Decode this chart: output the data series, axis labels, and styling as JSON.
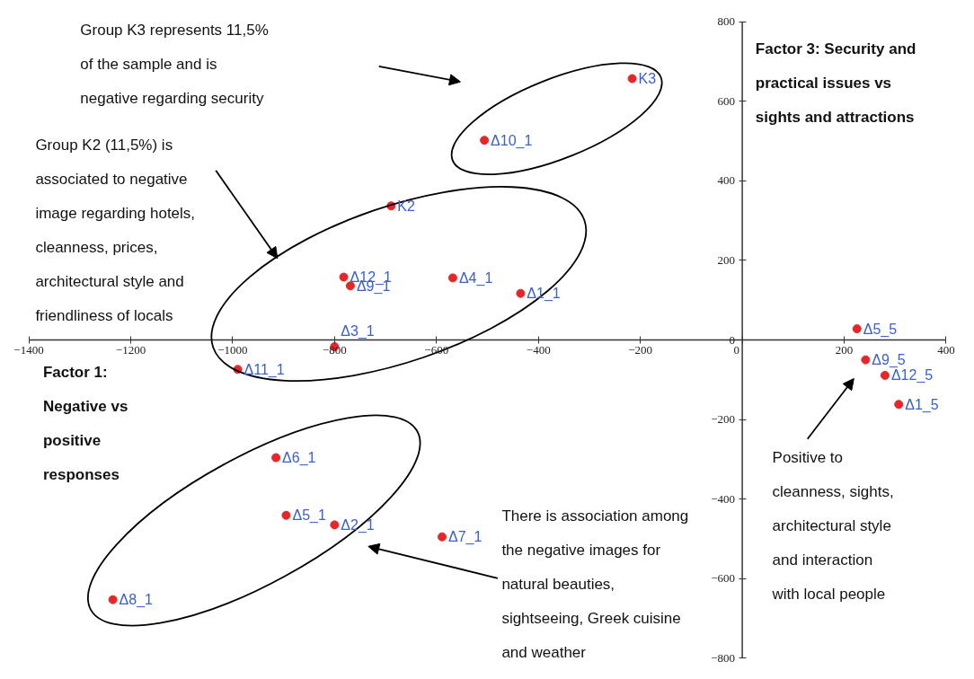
{
  "chart_data": {
    "type": "scatter",
    "xlabel": "Factor 1:\nNegative vs\npositive\nresponses",
    "ylabel": "Factor 3: Security and\npractical issues vs\nsights and attractions",
    "xlim": [
      -1400,
      400
    ],
    "ylim": [
      -800,
      800
    ],
    "xticks": [
      -1400,
      -1200,
      -1000,
      -800,
      -600,
      -400,
      -200,
      0,
      200,
      400
    ],
    "yticks": [
      -800,
      -600,
      -400,
      -200,
      0,
      200,
      400,
      600,
      800
    ],
    "grid": false,
    "marker": "circle",
    "x": [
      -216,
      -506,
      -689,
      -782,
      -769,
      -568,
      -435,
      -800,
      -990,
      225,
      242,
      280,
      307,
      -915,
      -895,
      -800,
      -589,
      -1235
    ],
    "series": [
      {
        "color": "#e8262a",
        "values": [
          657,
          502,
          337,
          158,
          136,
          156,
          117,
          -17,
          -74,
          28,
          -50,
          -89,
          -162,
          -296,
          -441,
          -465,
          -495,
          -653
        ]
      }
    ],
    "annotations": [
      "Group K3 represents 11,5%\nof the sample and is\nnegative regarding security",
      "Group K2 (11,5%) is\nassociated to negative\nimage regarding hotels,\ncleanness, prices,\narchitectural style and\nfriendliness of locals",
      "There is association among\nthe negative images for\nnatural beauties,\nsightseeing, Greek cuisine\nand weather",
      "Positive to\ncleanness, sights,\narchitectural style\nand interaction\nwith local people",
      {
        "text": "K3",
        "x": -216,
        "y": 657
      },
      {
        "text": "Δ10_1",
        "x": -506,
        "y": 502
      },
      {
        "text": "K2",
        "x": -689,
        "y": 337
      },
      {
        "text": "Δ12_1",
        "x": -782,
        "y": 158
      },
      {
        "text": "Δ9_1",
        "x": -769,
        "y": 136
      },
      {
        "text": "Δ4_1",
        "x": -568,
        "y": 156
      },
      {
        "text": "Δ1_1",
        "x": -435,
        "y": 117
      },
      {
        "text": "Δ3_1",
        "x": -800,
        "y": -17
      },
      {
        "text": "Δ11_1",
        "x": -990,
        "y": -74
      },
      {
        "text": "Δ5_5",
        "x": 225,
        "y": 28
      },
      {
        "text": "Δ9_5",
        "x": 242,
        "y": -50
      },
      {
        "text": "Δ12_5",
        "x": 280,
        "y": -89
      },
      {
        "text": "Δ1_5",
        "x": 307,
        "y": -162
      },
      {
        "text": "Δ6_1",
        "x": -915,
        "y": -296
      },
      {
        "text": "Δ5_1",
        "x": -895,
        "y": -441
      },
      {
        "text": "Δ2_1",
        "x": -800,
        "y": -465
      },
      {
        "text": "Δ7_1",
        "x": -589,
        "y": -495
      },
      {
        "text": "Δ8_1",
        "x": -1235,
        "y": -653
      }
    ]
  }
}
